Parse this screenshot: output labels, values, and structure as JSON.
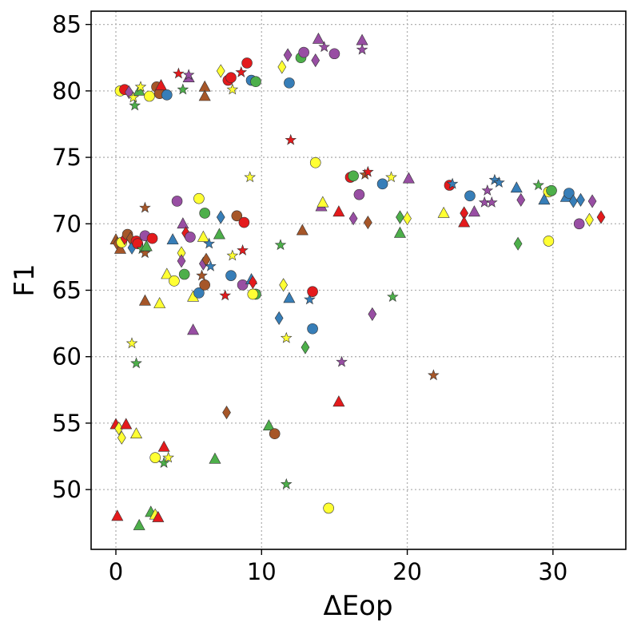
{
  "chart_data": {
    "type": "scatter",
    "title": "",
    "xlabel": "ΔEop",
    "ylabel": "F1",
    "xlim": [
      -1.7,
      35
    ],
    "ylim": [
      45.5,
      86
    ],
    "xticks": [
      0,
      10,
      20,
      30
    ],
    "yticks": [
      50,
      55,
      60,
      65,
      70,
      75,
      80,
      85
    ],
    "grid": true,
    "legend": "none",
    "colors": {
      "red": "#e41a1c",
      "blue": "#377eb8",
      "green": "#4daf4a",
      "purple": "#984ea3",
      "yellow": "#ffff33",
      "brown": "#a65628"
    },
    "marker_shapes": [
      "circle",
      "triangle",
      "diamond",
      "star"
    ],
    "points": [
      {
        "x": 0.3,
        "y": 80.0,
        "color": "yellow",
        "marker": "circle"
      },
      {
        "x": 0.6,
        "y": 80.1,
        "color": "red",
        "marker": "circle"
      },
      {
        "x": 0.9,
        "y": 79.9,
        "color": "purple",
        "marker": "diamond"
      },
      {
        "x": 1.2,
        "y": 79.5,
        "color": "yellow",
        "marker": "star"
      },
      {
        "x": 1.3,
        "y": 78.9,
        "color": "green",
        "marker": "star"
      },
      {
        "x": 1.6,
        "y": 80.0,
        "color": "green",
        "marker": "triangle"
      },
      {
        "x": 1.7,
        "y": 80.3,
        "color": "yellow",
        "marker": "star"
      },
      {
        "x": 2.3,
        "y": 79.6,
        "color": "yellow",
        "marker": "circle"
      },
      {
        "x": 2.8,
        "y": 80.3,
        "color": "brown",
        "marker": "circle"
      },
      {
        "x": 3.0,
        "y": 79.8,
        "color": "brown",
        "marker": "circle"
      },
      {
        "x": 3.1,
        "y": 80.4,
        "color": "red",
        "marker": "triangle"
      },
      {
        "x": 3.5,
        "y": 79.7,
        "color": "blue",
        "marker": "circle"
      },
      {
        "x": 4.3,
        "y": 81.3,
        "color": "red",
        "marker": "star"
      },
      {
        "x": 4.6,
        "y": 80.1,
        "color": "green",
        "marker": "star"
      },
      {
        "x": 5.0,
        "y": 81.0,
        "color": "purple",
        "marker": "triangle"
      },
      {
        "x": 5.0,
        "y": 81.2,
        "color": "purple",
        "marker": "star"
      },
      {
        "x": 6.1,
        "y": 80.3,
        "color": "brown",
        "marker": "triangle"
      },
      {
        "x": 6.1,
        "y": 79.6,
        "color": "brown",
        "marker": "triangle"
      },
      {
        "x": 7.2,
        "y": 81.5,
        "color": "yellow",
        "marker": "diamond"
      },
      {
        "x": 7.7,
        "y": 80.8,
        "color": "red",
        "marker": "circle"
      },
      {
        "x": 7.9,
        "y": 81.0,
        "color": "red",
        "marker": "circle"
      },
      {
        "x": 8.0,
        "y": 80.1,
        "color": "yellow",
        "marker": "star"
      },
      {
        "x": 8.6,
        "y": 81.4,
        "color": "red",
        "marker": "star"
      },
      {
        "x": 9.0,
        "y": 82.1,
        "color": "red",
        "marker": "circle"
      },
      {
        "x": 9.3,
        "y": 80.8,
        "color": "blue",
        "marker": "circle"
      },
      {
        "x": 9.6,
        "y": 80.7,
        "color": "green",
        "marker": "circle"
      },
      {
        "x": 11.4,
        "y": 81.8,
        "color": "yellow",
        "marker": "diamond"
      },
      {
        "x": 11.8,
        "y": 82.7,
        "color": "purple",
        "marker": "diamond"
      },
      {
        "x": 11.9,
        "y": 80.6,
        "color": "blue",
        "marker": "circle"
      },
      {
        "x": 12.7,
        "y": 82.5,
        "color": "green",
        "marker": "circle"
      },
      {
        "x": 12.9,
        "y": 82.9,
        "color": "purple",
        "marker": "circle"
      },
      {
        "x": 13.7,
        "y": 82.3,
        "color": "purple",
        "marker": "diamond"
      },
      {
        "x": 13.9,
        "y": 83.9,
        "color": "purple",
        "marker": "triangle"
      },
      {
        "x": 14.3,
        "y": 83.3,
        "color": "purple",
        "marker": "star"
      },
      {
        "x": 15.0,
        "y": 82.8,
        "color": "purple",
        "marker": "circle"
      },
      {
        "x": 16.9,
        "y": 83.8,
        "color": "purple",
        "marker": "triangle"
      },
      {
        "x": 16.9,
        "y": 83.1,
        "color": "purple",
        "marker": "star"
      },
      {
        "x": 12.0,
        "y": 76.3,
        "color": "red",
        "marker": "star"
      },
      {
        "x": 13.7,
        "y": 74.6,
        "color": "yellow",
        "marker": "circle"
      },
      {
        "x": 9.2,
        "y": 73.5,
        "color": "yellow",
        "marker": "star"
      },
      {
        "x": 16.1,
        "y": 73.5,
        "color": "red",
        "marker": "circle"
      },
      {
        "x": 16.3,
        "y": 73.6,
        "color": "green",
        "marker": "circle"
      },
      {
        "x": 17.1,
        "y": 73.7,
        "color": "brown",
        "marker": "star"
      },
      {
        "x": 17.3,
        "y": 73.9,
        "color": "red",
        "marker": "star"
      },
      {
        "x": 18.3,
        "y": 73.0,
        "color": "blue",
        "marker": "circle"
      },
      {
        "x": 18.9,
        "y": 73.5,
        "color": "yellow",
        "marker": "star"
      },
      {
        "x": 20.1,
        "y": 73.4,
        "color": "purple",
        "marker": "triangle"
      },
      {
        "x": 22.9,
        "y": 72.9,
        "color": "red",
        "marker": "circle"
      },
      {
        "x": 23.1,
        "y": 73.0,
        "color": "blue",
        "marker": "star"
      },
      {
        "x": 24.3,
        "y": 72.1,
        "color": "blue",
        "marker": "circle"
      },
      {
        "x": 25.5,
        "y": 72.5,
        "color": "purple",
        "marker": "star"
      },
      {
        "x": 26.0,
        "y": 73.3,
        "color": "blue",
        "marker": "star"
      },
      {
        "x": 26.3,
        "y": 73.1,
        "color": "blue",
        "marker": "star"
      },
      {
        "x": 27.5,
        "y": 72.7,
        "color": "blue",
        "marker": "triangle"
      },
      {
        "x": 29.0,
        "y": 72.9,
        "color": "green",
        "marker": "star"
      },
      {
        "x": 29.7,
        "y": 72.4,
        "color": "yellow",
        "marker": "circle"
      },
      {
        "x": 29.9,
        "y": 72.5,
        "color": "green",
        "marker": "circle"
      },
      {
        "x": 30.9,
        "y": 72.0,
        "color": "blue",
        "marker": "triangle"
      },
      {
        "x": 31.1,
        "y": 72.3,
        "color": "blue",
        "marker": "circle"
      },
      {
        "x": 31.4,
        "y": 71.7,
        "color": "blue",
        "marker": "diamond"
      },
      {
        "x": 31.9,
        "y": 71.8,
        "color": "blue",
        "marker": "diamond"
      },
      {
        "x": 32.7,
        "y": 71.7,
        "color": "purple",
        "marker": "diamond"
      },
      {
        "x": 29.4,
        "y": 71.8,
        "color": "blue",
        "marker": "triangle"
      },
      {
        "x": 16.7,
        "y": 72.2,
        "color": "purple",
        "marker": "circle"
      },
      {
        "x": 14.1,
        "y": 71.3,
        "color": "purple",
        "marker": "triangle"
      },
      {
        "x": 14.2,
        "y": 71.6,
        "color": "yellow",
        "marker": "triangle"
      },
      {
        "x": 25.3,
        "y": 71.6,
        "color": "purple",
        "marker": "star"
      },
      {
        "x": 25.8,
        "y": 71.6,
        "color": "purple",
        "marker": "star"
      },
      {
        "x": 27.8,
        "y": 71.8,
        "color": "purple",
        "marker": "diamond"
      },
      {
        "x": 15.3,
        "y": 70.9,
        "color": "red",
        "marker": "triangle"
      },
      {
        "x": 16.3,
        "y": 70.4,
        "color": "purple",
        "marker": "diamond"
      },
      {
        "x": 17.3,
        "y": 70.1,
        "color": "brown",
        "marker": "diamond"
      },
      {
        "x": 19.5,
        "y": 70.5,
        "color": "green",
        "marker": "diamond"
      },
      {
        "x": 19.5,
        "y": 69.3,
        "color": "green",
        "marker": "triangle"
      },
      {
        "x": 20.0,
        "y": 70.4,
        "color": "yellow",
        "marker": "diamond"
      },
      {
        "x": 22.5,
        "y": 70.8,
        "color": "yellow",
        "marker": "triangle"
      },
      {
        "x": 23.9,
        "y": 70.8,
        "color": "red",
        "marker": "diamond"
      },
      {
        "x": 23.9,
        "y": 70.1,
        "color": "red",
        "marker": "triangle"
      },
      {
        "x": 24.6,
        "y": 70.9,
        "color": "purple",
        "marker": "triangle"
      },
      {
        "x": 27.6,
        "y": 68.5,
        "color": "green",
        "marker": "diamond"
      },
      {
        "x": 29.7,
        "y": 68.7,
        "color": "yellow",
        "marker": "circle"
      },
      {
        "x": 31.8,
        "y": 70.0,
        "color": "purple",
        "marker": "circle"
      },
      {
        "x": 32.5,
        "y": 70.3,
        "color": "yellow",
        "marker": "diamond"
      },
      {
        "x": 33.3,
        "y": 70.5,
        "color": "red",
        "marker": "diamond"
      },
      {
        "x": 12.8,
        "y": 69.5,
        "color": "brown",
        "marker": "triangle"
      },
      {
        "x": 0.0,
        "y": 68.8,
        "color": "brown",
        "marker": "triangle"
      },
      {
        "x": 0.1,
        "y": 68.5,
        "color": "brown",
        "marker": "diamond"
      },
      {
        "x": 0.3,
        "y": 68.1,
        "color": "brown",
        "marker": "triangle"
      },
      {
        "x": 0.4,
        "y": 68.6,
        "color": "yellow",
        "marker": "circle"
      },
      {
        "x": 0.6,
        "y": 68.9,
        "color": "red",
        "marker": "diamond"
      },
      {
        "x": 0.8,
        "y": 69.2,
        "color": "brown",
        "marker": "circle"
      },
      {
        "x": 1.0,
        "y": 68.9,
        "color": "brown",
        "marker": "diamond"
      },
      {
        "x": 1.1,
        "y": 68.2,
        "color": "blue",
        "marker": "diamond"
      },
      {
        "x": 1.4,
        "y": 68.7,
        "color": "red",
        "marker": "circle"
      },
      {
        "x": 1.5,
        "y": 68.5,
        "color": "red",
        "marker": "circle"
      },
      {
        "x": 1.8,
        "y": 68.1,
        "color": "green",
        "marker": "star"
      },
      {
        "x": 2.0,
        "y": 67.8,
        "color": "brown",
        "marker": "star"
      },
      {
        "x": 2.0,
        "y": 69.1,
        "color": "purple",
        "marker": "circle"
      },
      {
        "x": 2.1,
        "y": 68.3,
        "color": "green",
        "marker": "triangle"
      },
      {
        "x": 2.5,
        "y": 68.9,
        "color": "red",
        "marker": "circle"
      },
      {
        "x": 2.0,
        "y": 71.2,
        "color": "brown",
        "marker": "star"
      },
      {
        "x": 3.9,
        "y": 68.8,
        "color": "blue",
        "marker": "triangle"
      },
      {
        "x": 4.2,
        "y": 71.7,
        "color": "purple",
        "marker": "circle"
      },
      {
        "x": 4.6,
        "y": 70.0,
        "color": "purple",
        "marker": "triangle"
      },
      {
        "x": 4.8,
        "y": 69.3,
        "color": "red",
        "marker": "diamond"
      },
      {
        "x": 5.1,
        "y": 69.0,
        "color": "purple",
        "marker": "circle"
      },
      {
        "x": 4.5,
        "y": 67.8,
        "color": "yellow",
        "marker": "diamond"
      },
      {
        "x": 4.5,
        "y": 67.2,
        "color": "purple",
        "marker": "diamond"
      },
      {
        "x": 5.7,
        "y": 71.9,
        "color": "yellow",
        "marker": "circle"
      },
      {
        "x": 6.1,
        "y": 70.8,
        "color": "green",
        "marker": "circle"
      },
      {
        "x": 6.0,
        "y": 69.0,
        "color": "yellow",
        "marker": "triangle"
      },
      {
        "x": 6.4,
        "y": 68.5,
        "color": "blue",
        "marker": "star"
      },
      {
        "x": 6.0,
        "y": 67.0,
        "color": "purple",
        "marker": "diamond"
      },
      {
        "x": 6.2,
        "y": 67.3,
        "color": "brown",
        "marker": "diamond"
      },
      {
        "x": 6.5,
        "y": 66.8,
        "color": "blue",
        "marker": "star"
      },
      {
        "x": 5.9,
        "y": 66.1,
        "color": "brown",
        "marker": "star"
      },
      {
        "x": 7.2,
        "y": 70.5,
        "color": "blue",
        "marker": "diamond"
      },
      {
        "x": 7.1,
        "y": 69.2,
        "color": "green",
        "marker": "triangle"
      },
      {
        "x": 8.3,
        "y": 70.6,
        "color": "brown",
        "marker": "circle"
      },
      {
        "x": 8.8,
        "y": 70.1,
        "color": "red",
        "marker": "circle"
      },
      {
        "x": 8.0,
        "y": 67.6,
        "color": "yellow",
        "marker": "star"
      },
      {
        "x": 8.7,
        "y": 68.0,
        "color": "red",
        "marker": "star"
      },
      {
        "x": 3.5,
        "y": 66.2,
        "color": "yellow",
        "marker": "triangle"
      },
      {
        "x": 4.7,
        "y": 66.2,
        "color": "green",
        "marker": "circle"
      },
      {
        "x": 4.0,
        "y": 65.7,
        "color": "yellow",
        "marker": "circle"
      },
      {
        "x": 5.3,
        "y": 64.5,
        "color": "yellow",
        "marker": "triangle"
      },
      {
        "x": 5.7,
        "y": 64.8,
        "color": "blue",
        "marker": "circle"
      },
      {
        "x": 6.1,
        "y": 65.4,
        "color": "brown",
        "marker": "circle"
      },
      {
        "x": 7.5,
        "y": 64.6,
        "color": "red",
        "marker": "star"
      },
      {
        "x": 7.9,
        "y": 66.1,
        "color": "blue",
        "marker": "circle"
      },
      {
        "x": 8.7,
        "y": 65.4,
        "color": "purple",
        "marker": "circle"
      },
      {
        "x": 9.3,
        "y": 65.8,
        "color": "blue",
        "marker": "triangle"
      },
      {
        "x": 9.4,
        "y": 65.6,
        "color": "red",
        "marker": "diamond"
      },
      {
        "x": 9.6,
        "y": 64.7,
        "color": "green",
        "marker": "circle"
      },
      {
        "x": 9.4,
        "y": 64.7,
        "color": "yellow",
        "marker": "circle"
      },
      {
        "x": 2.0,
        "y": 64.2,
        "color": "brown",
        "marker": "triangle"
      },
      {
        "x": 3.0,
        "y": 64.0,
        "color": "yellow",
        "marker": "triangle"
      },
      {
        "x": 11.3,
        "y": 68.4,
        "color": "green",
        "marker": "star"
      },
      {
        "x": 11.5,
        "y": 65.4,
        "color": "yellow",
        "marker": "diamond"
      },
      {
        "x": 11.9,
        "y": 64.4,
        "color": "blue",
        "marker": "triangle"
      },
      {
        "x": 13.3,
        "y": 64.3,
        "color": "blue",
        "marker": "star"
      },
      {
        "x": 13.5,
        "y": 64.9,
        "color": "red",
        "marker": "circle"
      },
      {
        "x": 11.2,
        "y": 62.9,
        "color": "blue",
        "marker": "diamond"
      },
      {
        "x": 13.5,
        "y": 62.1,
        "color": "blue",
        "marker": "circle"
      },
      {
        "x": 11.7,
        "y": 61.4,
        "color": "yellow",
        "marker": "star"
      },
      {
        "x": 13.0,
        "y": 60.7,
        "color": "green",
        "marker": "diamond"
      },
      {
        "x": 5.3,
        "y": 62.0,
        "color": "purple",
        "marker": "triangle"
      },
      {
        "x": 1.1,
        "y": 61.0,
        "color": "yellow",
        "marker": "star"
      },
      {
        "x": 1.4,
        "y": 59.5,
        "color": "green",
        "marker": "star"
      },
      {
        "x": 19.0,
        "y": 64.5,
        "color": "green",
        "marker": "star"
      },
      {
        "x": 17.6,
        "y": 63.2,
        "color": "purple",
        "marker": "diamond"
      },
      {
        "x": 15.5,
        "y": 59.6,
        "color": "purple",
        "marker": "star"
      },
      {
        "x": 21.8,
        "y": 58.6,
        "color": "brown",
        "marker": "star"
      },
      {
        "x": 15.3,
        "y": 56.6,
        "color": "red",
        "marker": "triangle"
      },
      {
        "x": 7.6,
        "y": 55.8,
        "color": "brown",
        "marker": "diamond"
      },
      {
        "x": 10.5,
        "y": 54.8,
        "color": "green",
        "marker": "triangle"
      },
      {
        "x": 10.9,
        "y": 54.2,
        "color": "brown",
        "marker": "circle"
      },
      {
        "x": 0.0,
        "y": 54.9,
        "color": "red",
        "marker": "triangle"
      },
      {
        "x": 0.2,
        "y": 54.6,
        "color": "yellow",
        "marker": "diamond"
      },
      {
        "x": 0.4,
        "y": 53.9,
        "color": "yellow",
        "marker": "diamond"
      },
      {
        "x": 0.7,
        "y": 54.9,
        "color": "red",
        "marker": "triangle"
      },
      {
        "x": 1.4,
        "y": 54.2,
        "color": "yellow",
        "marker": "triangle"
      },
      {
        "x": 3.3,
        "y": 53.2,
        "color": "red",
        "marker": "triangle"
      },
      {
        "x": 2.7,
        "y": 52.4,
        "color": "yellow",
        "marker": "circle"
      },
      {
        "x": 3.3,
        "y": 52.0,
        "color": "green",
        "marker": "star"
      },
      {
        "x": 3.6,
        "y": 52.4,
        "color": "yellow",
        "marker": "star"
      },
      {
        "x": 6.8,
        "y": 52.3,
        "color": "green",
        "marker": "triangle"
      },
      {
        "x": 11.7,
        "y": 50.4,
        "color": "green",
        "marker": "star"
      },
      {
        "x": 14.6,
        "y": 48.6,
        "color": "yellow",
        "marker": "circle"
      },
      {
        "x": 0.1,
        "y": 48.0,
        "color": "red",
        "marker": "triangle"
      },
      {
        "x": 2.4,
        "y": 48.3,
        "color": "green",
        "marker": "triangle"
      },
      {
        "x": 2.7,
        "y": 48.1,
        "color": "yellow",
        "marker": "triangle"
      },
      {
        "x": 2.9,
        "y": 47.9,
        "color": "red",
        "marker": "triangle"
      },
      {
        "x": 1.6,
        "y": 47.3,
        "color": "green",
        "marker": "triangle"
      }
    ]
  }
}
